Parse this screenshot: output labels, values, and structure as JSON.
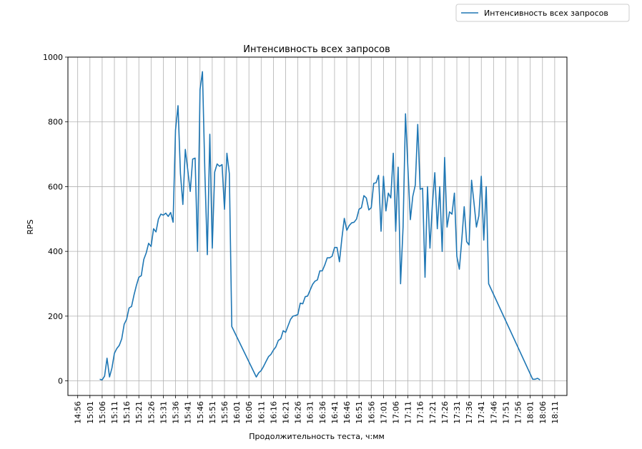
{
  "chart_data": {
    "type": "line",
    "title": "Интенсивность всех запросов",
    "xlabel": "Продолжительность теста, ч:мм",
    "ylabel": "RPS",
    "ylim": [
      -45,
      1000
    ],
    "grid": true,
    "legend_position": "top-right",
    "x_ticks": [
      "14:56",
      "15:01",
      "15:06",
      "15:11",
      "15:16",
      "15:21",
      "15:26",
      "15:31",
      "15:36",
      "15:41",
      "15:46",
      "15:51",
      "15:56",
      "16:01",
      "16:06",
      "16:11",
      "16:16",
      "16:21",
      "16:26",
      "16:31",
      "16:36",
      "16:41",
      "16:46",
      "16:51",
      "16:56",
      "17:01",
      "17:06",
      "17:11",
      "17:16",
      "17:21",
      "17:26",
      "17:31",
      "17:36",
      "17:41",
      "17:46",
      "17:51",
      "17:56",
      "18:01",
      "18:06",
      "18:11"
    ],
    "y_ticks": [
      0,
      200,
      400,
      600,
      800,
      1000
    ],
    "series": [
      {
        "name": "Интенсивность всех запросов",
        "color": "#1f77b4",
        "points": [
          [
            "15:05",
            5
          ],
          [
            "15:06",
            3
          ],
          [
            "15:07",
            15
          ],
          [
            "15:08",
            70
          ],
          [
            "15:09",
            12
          ],
          [
            "15:10",
            40
          ],
          [
            "15:11",
            85
          ],
          [
            "15:12",
            100
          ],
          [
            "15:13",
            110
          ],
          [
            "15:14",
            130
          ],
          [
            "15:15",
            175
          ],
          [
            "15:16",
            190
          ],
          [
            "15:17",
            225
          ],
          [
            "15:18",
            230
          ],
          [
            "15:19",
            265
          ],
          [
            "15:20",
            295
          ],
          [
            "15:21",
            320
          ],
          [
            "15:22",
            325
          ],
          [
            "15:23",
            375
          ],
          [
            "15:24",
            395
          ],
          [
            "15:25",
            425
          ],
          [
            "15:26",
            415
          ],
          [
            "15:27",
            470
          ],
          [
            "15:28",
            460
          ],
          [
            "15:29",
            500
          ],
          [
            "15:30",
            515
          ],
          [
            "15:31",
            512
          ],
          [
            "15:32",
            518
          ],
          [
            "15:33",
            508
          ],
          [
            "15:34",
            520
          ],
          [
            "15:35",
            490
          ],
          [
            "15:36",
            775
          ],
          [
            "15:37",
            850
          ],
          [
            "15:38",
            640
          ],
          [
            "15:39",
            545
          ],
          [
            "15:40",
            715
          ],
          [
            "15:41",
            650
          ],
          [
            "15:42",
            585
          ],
          [
            "15:43",
            685
          ],
          [
            "15:44",
            688
          ],
          [
            "15:45",
            400
          ],
          [
            "15:46",
            900
          ],
          [
            "15:47",
            955
          ],
          [
            "15:48",
            640
          ],
          [
            "15:49",
            390
          ],
          [
            "15:50",
            762
          ],
          [
            "15:51",
            410
          ],
          [
            "15:52",
            645
          ],
          [
            "15:53",
            670
          ],
          [
            "15:54",
            663
          ],
          [
            "15:55",
            668
          ],
          [
            "15:56",
            530
          ],
          [
            "15:57",
            703
          ],
          [
            "15:58",
            640
          ],
          [
            "15:59",
            168
          ],
          [
            "16:09",
            12
          ],
          [
            "16:10",
            25
          ],
          [
            "16:11",
            32
          ],
          [
            "16:12",
            45
          ],
          [
            "16:13",
            60
          ],
          [
            "16:14",
            75
          ],
          [
            "16:15",
            82
          ],
          [
            "16:16",
            95
          ],
          [
            "16:17",
            105
          ],
          [
            "16:18",
            125
          ],
          [
            "16:19",
            130
          ],
          [
            "16:20",
            155
          ],
          [
            "16:21",
            150
          ],
          [
            "16:22",
            170
          ],
          [
            "16:23",
            190
          ],
          [
            "16:24",
            200
          ],
          [
            "16:25",
            202
          ],
          [
            "16:26",
            205
          ],
          [
            "16:27",
            240
          ],
          [
            "16:28",
            238
          ],
          [
            "16:29",
            260
          ],
          [
            "16:30",
            262
          ],
          [
            "16:31",
            280
          ],
          [
            "16:32",
            298
          ],
          [
            "16:33",
            308
          ],
          [
            "16:34",
            312
          ],
          [
            "16:35",
            340
          ],
          [
            "16:36",
            340
          ],
          [
            "16:37",
            358
          ],
          [
            "16:38",
            380
          ],
          [
            "16:39",
            380
          ],
          [
            "16:40",
            385
          ],
          [
            "16:41",
            412
          ],
          [
            "16:42",
            412
          ],
          [
            "16:43",
            368
          ],
          [
            "16:44",
            440
          ],
          [
            "16:45",
            502
          ],
          [
            "16:46",
            465
          ],
          [
            "16:47",
            480
          ],
          [
            "16:48",
            488
          ],
          [
            "16:49",
            490
          ],
          [
            "16:50",
            500
          ],
          [
            "16:51",
            530
          ],
          [
            "16:52",
            535
          ],
          [
            "16:53",
            572
          ],
          [
            "16:54",
            565
          ],
          [
            "16:55",
            528
          ],
          [
            "16:56",
            535
          ],
          [
            "16:57",
            610
          ],
          [
            "16:58",
            612
          ],
          [
            "16:59",
            635
          ],
          [
            "17:00",
            462
          ],
          [
            "17:01",
            632
          ],
          [
            "17:02",
            525
          ],
          [
            "17:03",
            580
          ],
          [
            "17:04",
            565
          ],
          [
            "17:05",
            703
          ],
          [
            "17:06",
            462
          ],
          [
            "17:07",
            660
          ],
          [
            "17:08",
            300
          ],
          [
            "17:09",
            475
          ],
          [
            "17:10",
            825
          ],
          [
            "17:11",
            655
          ],
          [
            "17:12",
            498
          ],
          [
            "17:13",
            570
          ],
          [
            "17:14",
            605
          ],
          [
            "17:15",
            792
          ],
          [
            "17:16",
            592
          ],
          [
            "17:17",
            595
          ],
          [
            "17:18",
            320
          ],
          [
            "17:19",
            600
          ],
          [
            "17:20",
            410
          ],
          [
            "17:21",
            545
          ],
          [
            "17:22",
            643
          ],
          [
            "17:23",
            470
          ],
          [
            "17:24",
            600
          ],
          [
            "17:25",
            400
          ],
          [
            "17:26",
            690
          ],
          [
            "17:27",
            475
          ],
          [
            "17:28",
            522
          ],
          [
            "17:29",
            515
          ],
          [
            "17:30",
            580
          ],
          [
            "17:31",
            385
          ],
          [
            "17:32",
            345
          ],
          [
            "17:33",
            435
          ],
          [
            "17:34",
            538
          ],
          [
            "17:35",
            430
          ],
          [
            "17:36",
            420
          ],
          [
            "17:37",
            620
          ],
          [
            "17:38",
            550
          ],
          [
            "17:39",
            475
          ],
          [
            "17:40",
            510
          ],
          [
            "17:41",
            632
          ],
          [
            "17:42",
            435
          ],
          [
            "17:43",
            600
          ],
          [
            "17:44",
            300
          ],
          [
            "18:02",
            5
          ],
          [
            "18:03",
            5
          ],
          [
            "18:04",
            8
          ],
          [
            "18:05",
            3
          ]
        ]
      }
    ]
  }
}
